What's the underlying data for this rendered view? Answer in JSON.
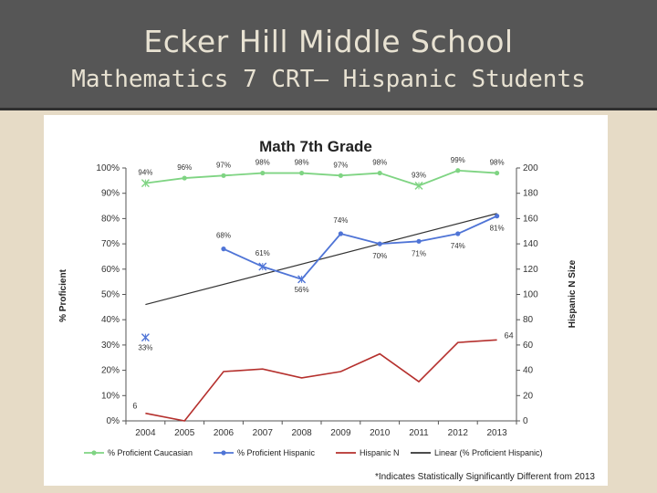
{
  "slide": {
    "title": "Ecker Hill Middle School",
    "subtitle": "Mathematics 7 CRT– Hispanic Students",
    "footnote": "*Indicates Statistically Significantly Different from 2013"
  },
  "chart_data": {
    "type": "line",
    "title": "Math 7th Grade",
    "ylabel": "% Proficient",
    "y2label": "Hispanic N Size",
    "categories": [
      "2004",
      "2005",
      "2006",
      "2007",
      "2008",
      "2009",
      "2010",
      "2011",
      "2012",
      "2013"
    ],
    "ylim": [
      0,
      100
    ],
    "y2lim": [
      0,
      200
    ],
    "yticks": [
      "0%",
      "10%",
      "20%",
      "30%",
      "40%",
      "50%",
      "60%",
      "70%",
      "80%",
      "90%",
      "100%"
    ],
    "y2ticks": [
      "0",
      "20",
      "40",
      "60",
      "80",
      "100",
      "120",
      "140",
      "160",
      "180",
      "200"
    ],
    "grid": false,
    "legend_position": "bottom",
    "series": [
      {
        "name": "% Proficient Caucasian",
        "axis": "left",
        "color": "#7fd483",
        "values": [
          94,
          96,
          97,
          98,
          98,
          97,
          98,
          93,
          99,
          98
        ],
        "labels": [
          "94%",
          "96%",
          "97%",
          "98%",
          "98%",
          "97%",
          "98%",
          "93%",
          "99%",
          "98%"
        ],
        "significant": [
          true,
          false,
          false,
          false,
          false,
          false,
          false,
          true,
          false,
          false
        ]
      },
      {
        "name": "% Proficient Hispanic",
        "axis": "left",
        "color": "#4f74d6",
        "values": [
          33,
          null,
          68,
          61,
          56,
          74,
          70,
          71,
          74,
          81
        ],
        "labels": [
          "33%",
          "",
          "68%",
          "61%",
          "56%",
          "74%",
          "70%",
          "71%",
          "74%",
          "81%"
        ],
        "significant": [
          true,
          false,
          false,
          true,
          true,
          false,
          false,
          false,
          false,
          false
        ]
      },
      {
        "name": "Hispanic N",
        "axis": "right",
        "color": "#b5302d",
        "values": [
          6,
          0,
          39,
          41,
          34,
          39,
          53,
          31,
          62,
          64
        ],
        "labels": [
          "6",
          "",
          "",
          "",
          "",
          "",
          "",
          "",
          "",
          "64"
        ]
      },
      {
        "name": "Linear (% Proficient Hispanic)",
        "axis": "left",
        "color": "#333333",
        "trend_start": 46,
        "trend_end": 82
      }
    ]
  }
}
